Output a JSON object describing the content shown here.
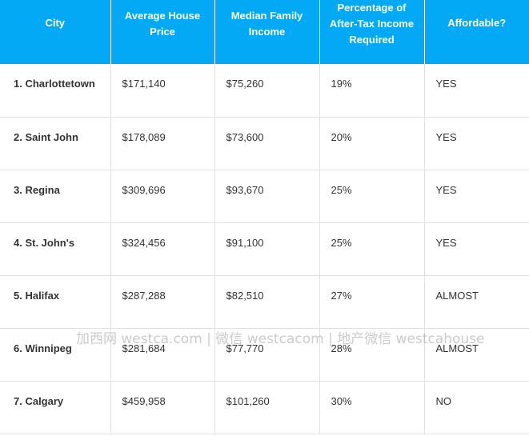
{
  "table": {
    "headers": [
      "City",
      "Average House Price",
      "Median Family Income",
      "Percentage of After-Tax Income Required",
      "Affordable?"
    ],
    "rows": [
      [
        "1. Charlottetown",
        "$171,140",
        "$75,260",
        "19%",
        "YES"
      ],
      [
        "2. Saint John",
        "$178,089",
        "$73,600",
        "20%",
        "YES"
      ],
      [
        "3. Regina",
        "$309,696",
        "$93,670",
        "25%",
        "YES"
      ],
      [
        "4. St. John's",
        "$324,456",
        "$91,100",
        "25%",
        "YES"
      ],
      [
        "5. Halifax",
        "$287,288",
        "$82,510",
        "27%",
        "ALMOST"
      ],
      [
        "6. Winnipeg",
        "$281,684",
        "$77,770",
        "28%",
        "ALMOST"
      ],
      [
        "7. Calgary",
        "$459,958",
        "$101,260",
        "30%",
        "NO"
      ]
    ]
  },
  "watermark": "加西网 westca.com | 微信 westcacom | 地产微信 westcahouse",
  "colors": {
    "header_bg": "#03a9f4",
    "header_text": "#ffffff",
    "cell_text": "#333333",
    "grid_line": "#e2e2e2"
  }
}
